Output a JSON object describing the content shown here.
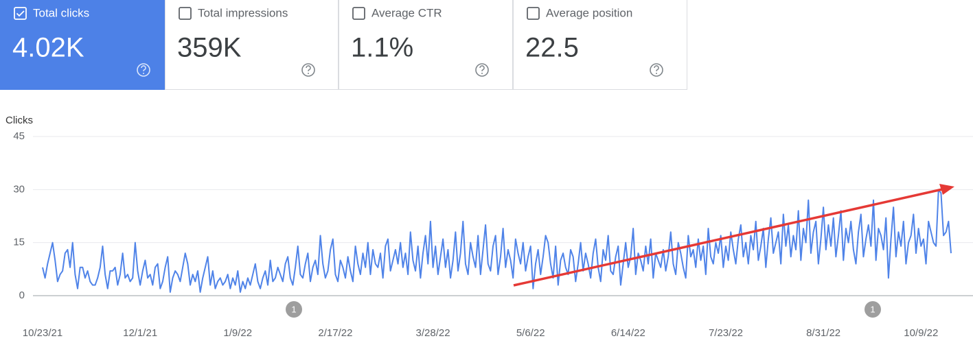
{
  "cards": [
    {
      "label": "Total clicks",
      "value": "4.02K",
      "checked": true
    },
    {
      "label": "Total impressions",
      "value": "359K",
      "checked": false
    },
    {
      "label": "Average CTR",
      "value": "1.1%",
      "checked": false
    },
    {
      "label": "Average position",
      "value": "22.5",
      "checked": false
    }
  ],
  "selected_color": "#4d81e7",
  "chart_data": {
    "type": "line",
    "y_label": "Clicks",
    "color": "#4f83e8",
    "grid": true,
    "ylim": [
      0,
      45
    ],
    "yticks": [
      0,
      15,
      30,
      45
    ],
    "xlim": [
      0,
      363
    ],
    "xticks": [
      {
        "value": 0,
        "label": "10/23/21"
      },
      {
        "value": 39,
        "label": "12/1/21"
      },
      {
        "value": 78,
        "label": "1/9/22"
      },
      {
        "value": 117,
        "label": "2/17/22"
      },
      {
        "value": 156,
        "label": "3/28/22"
      },
      {
        "value": 195,
        "label": "5/6/22"
      },
      {
        "value": 234,
        "label": "6/14/22"
      },
      {
        "value": 273,
        "label": "7/23/22"
      },
      {
        "value": 312,
        "label": "8/31/22"
      },
      {
        "value": 351,
        "label": "10/9/22"
      }
    ],
    "annotations": [
      {
        "label": "1"
      },
      {
        "label": "1"
      }
    ],
    "values": [
      8,
      5,
      9,
      12,
      15,
      10,
      4,
      6,
      7,
      12,
      13,
      8,
      15,
      6,
      2,
      8,
      8,
      5,
      7,
      4,
      3,
      3,
      5,
      8,
      14,
      6,
      2,
      7,
      7,
      8,
      3,
      6,
      12,
      5,
      6,
      4,
      5,
      15,
      7,
      3,
      7,
      10,
      5,
      6,
      3,
      8,
      9,
      2,
      4,
      8,
      11,
      1,
      5,
      7,
      6,
      4,
      8,
      12,
      9,
      3,
      6,
      4,
      7,
      1,
      5,
      8,
      11,
      3,
      7,
      2,
      4,
      5,
      3,
      4,
      6,
      2,
      5,
      3,
      7,
      1,
      4,
      2,
      5,
      3,
      6,
      9,
      4,
      2,
      5,
      7,
      3,
      10,
      4,
      5,
      8,
      6,
      4,
      9,
      11,
      5,
      3,
      8,
      14,
      6,
      5,
      9,
      12,
      4,
      8,
      10,
      6,
      17,
      9,
      5,
      7,
      13,
      16,
      6,
      4,
      10,
      8,
      5,
      11,
      7,
      4,
      14,
      9,
      6,
      12,
      8,
      15,
      6,
      13,
      9,
      8,
      12,
      5,
      14,
      16,
      7,
      10,
      13,
      9,
      15,
      8,
      12,
      6,
      18,
      10,
      7,
      14,
      5,
      12,
      17,
      9,
      21,
      8,
      14,
      6,
      11,
      16,
      8,
      13,
      5,
      10,
      18,
      7,
      12,
      21,
      9,
      6,
      15,
      11,
      8,
      17,
      6,
      13,
      20,
      9,
      7,
      14,
      17,
      6,
      11,
      19,
      8,
      13,
      10,
      5,
      16,
      12,
      9,
      15,
      7,
      11,
      14,
      2,
      9,
      13,
      6,
      11,
      17,
      15,
      9,
      5,
      14,
      3,
      10,
      12,
      8,
      6,
      13,
      11,
      4,
      9,
      15,
      7,
      12,
      9,
      5,
      12,
      16,
      8,
      4,
      13,
      10,
      17,
      7,
      6,
      11,
      14,
      3,
      9,
      15,
      8,
      11,
      19,
      6,
      12,
      10,
      7,
      14,
      9,
      16,
      5,
      12,
      10,
      8,
      13,
      7,
      11,
      18,
      9,
      6,
      15,
      12,
      8,
      5,
      17,
      11,
      13,
      8,
      16,
      10,
      14,
      6,
      19,
      11,
      9,
      15,
      12,
      17,
      8,
      14,
      10,
      18,
      13,
      9,
      16,
      20,
      11,
      15,
      9,
      17,
      13,
      21,
      10,
      14,
      19,
      8,
      16,
      22,
      12,
      15,
      18,
      9,
      23,
      14,
      20,
      11,
      17,
      13,
      24,
      10,
      19,
      15,
      27,
      12,
      18,
      21,
      9,
      16,
      25,
      13,
      20,
      14,
      22,
      11,
      17,
      24,
      10,
      19,
      15,
      21,
      13,
      9,
      18,
      23,
      11,
      16,
      20,
      14,
      27,
      10,
      19,
      17,
      13,
      22,
      5,
      16,
      25,
      11,
      18,
      14,
      21,
      9,
      15,
      17,
      23,
      12,
      19,
      14,
      16,
      9,
      21,
      18,
      15,
      14,
      30,
      29,
      17,
      18,
      21,
      12
    ]
  }
}
